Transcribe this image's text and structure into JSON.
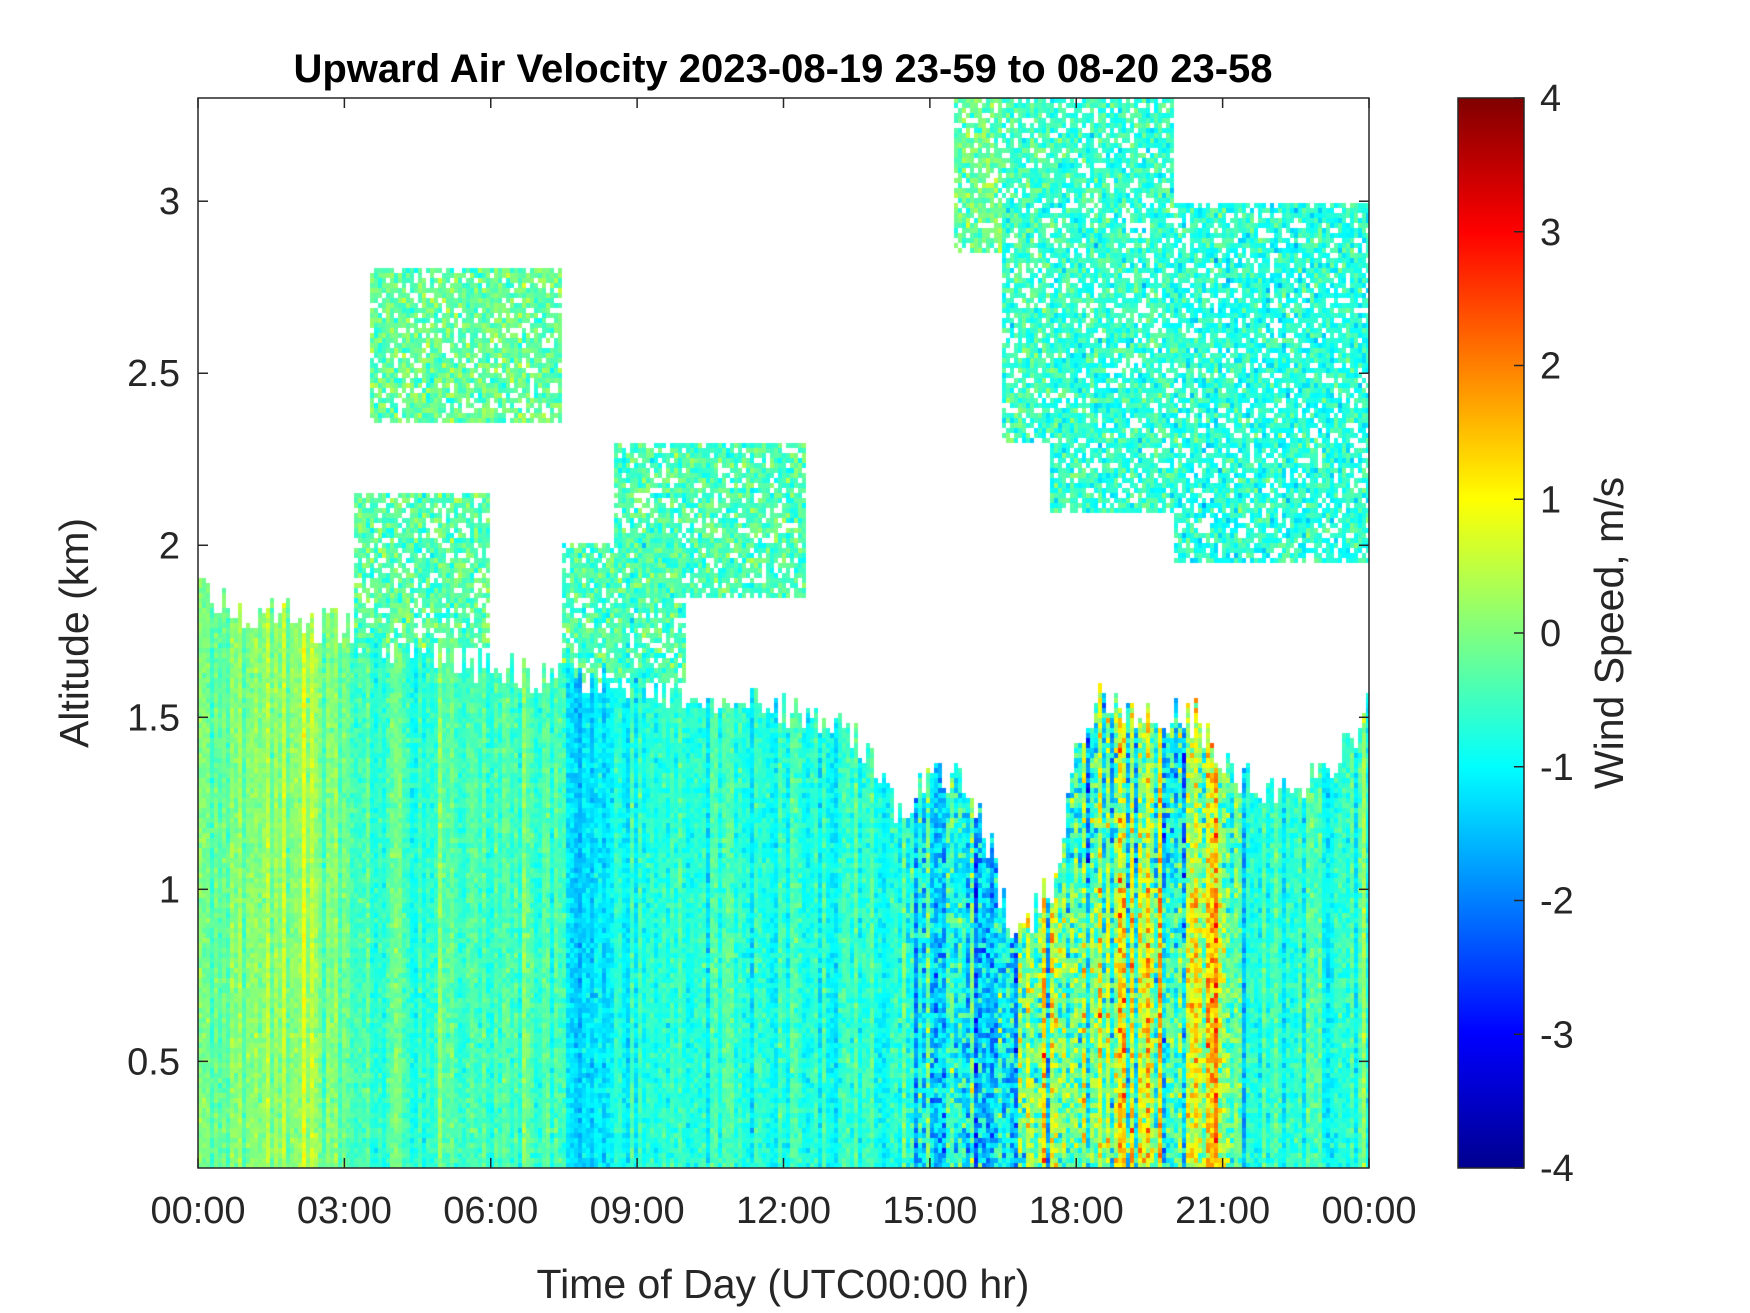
{
  "chart_data": {
    "type": "heatmap",
    "title": "Upward Air Velocity 2023-08-19 23-59 to 08-20 23-58",
    "xlabel": "Time of Day (UTC00:00 hr)",
    "ylabel": "Altitude (km)",
    "xlim_hours": [
      0,
      24
    ],
    "ylim": [
      0.19,
      3.3
    ],
    "x_ticks": [
      {
        "value": 0,
        "label": "00:00"
      },
      {
        "value": 3,
        "label": "03:00"
      },
      {
        "value": 6,
        "label": "06:00"
      },
      {
        "value": 9,
        "label": "09:00"
      },
      {
        "value": 12,
        "label": "12:00"
      },
      {
        "value": 15,
        "label": "15:00"
      },
      {
        "value": 18,
        "label": "18:00"
      },
      {
        "value": 21,
        "label": "21:00"
      },
      {
        "value": 24,
        "label": "00:00"
      }
    ],
    "y_ticks": [
      {
        "value": 0.5,
        "label": "0.5"
      },
      {
        "value": 1,
        "label": "1"
      },
      {
        "value": 1.5,
        "label": "1.5"
      },
      {
        "value": 2,
        "label": "2"
      },
      {
        "value": 2.5,
        "label": "2.5"
      },
      {
        "value": 3,
        "label": "3"
      }
    ],
    "colorbar": {
      "label": "Wind Speed, m/s",
      "colormap": "jet",
      "clim": [
        -4,
        4
      ],
      "ticks": [
        {
          "value": 4,
          "label": "4"
        },
        {
          "value": 3,
          "label": "3"
        },
        {
          "value": 2,
          "label": "2"
        },
        {
          "value": 1,
          "label": "1"
        },
        {
          "value": 0,
          "label": "0"
        },
        {
          "value": -1,
          "label": "-1"
        },
        {
          "value": -2,
          "label": "-2"
        },
        {
          "value": -3,
          "label": "-3"
        },
        {
          "value": -4,
          "label": "-4"
        }
      ]
    },
    "boundary_layer_top_km": [
      [
        0,
        1.88
      ],
      [
        1,
        1.8
      ],
      [
        2,
        1.78
      ],
      [
        3,
        1.75
      ],
      [
        4,
        1.72
      ],
      [
        5,
        1.68
      ],
      [
        6,
        1.65
      ],
      [
        7,
        1.62
      ],
      [
        8,
        1.62
      ],
      [
        9,
        1.6
      ],
      [
        10,
        1.58
      ],
      [
        11,
        1.55
      ],
      [
        12,
        1.52
      ],
      [
        13,
        1.5
      ],
      [
        13.7,
        1.42
      ],
      [
        14.3,
        1.22
      ],
      [
        15,
        1.32
      ],
      [
        15.8,
        1.3
      ],
      [
        16.3,
        1.1
      ],
      [
        16.7,
        0.82
      ],
      [
        17.2,
        0.95
      ],
      [
        17.7,
        1.05
      ],
      [
        18.0,
        1.45
      ],
      [
        18.5,
        1.55
      ],
      [
        19.5,
        1.5
      ],
      [
        20.5,
        1.5
      ],
      [
        21.2,
        1.32
      ],
      [
        22,
        1.28
      ],
      [
        23,
        1.32
      ],
      [
        24,
        1.52
      ]
    ],
    "elevated_layers": [
      {
        "t": [
          3.5,
          7.5
        ],
        "alt": [
          2.35,
          2.8
        ],
        "mean": -0.2
      },
      {
        "t": [
          3.2,
          6.0
        ],
        "alt": [
          1.7,
          2.15
        ],
        "mean": -0.3
      },
      {
        "t": [
          8.5,
          12.5
        ],
        "alt": [
          1.85,
          2.3
        ],
        "mean": -0.4
      },
      {
        "t": [
          7.5,
          10.0
        ],
        "alt": [
          1.6,
          2.0
        ],
        "mean": -0.4
      },
      {
        "t": [
          15.5,
          16.5
        ],
        "alt": [
          2.85,
          3.3
        ],
        "mean": -0.2
      },
      {
        "t": [
          16.5,
          17.5
        ],
        "alt": [
          2.3,
          3.3
        ],
        "mean": -0.5
      },
      {
        "t": [
          17.5,
          20.0
        ],
        "alt": [
          2.1,
          3.3
        ],
        "mean": -0.6
      },
      {
        "t": [
          20.0,
          24.0
        ],
        "alt": [
          1.95,
          3.0
        ],
        "mean": -0.7
      }
    ],
    "mean_velocity_by_time": [
      [
        0,
        -0.2
      ],
      [
        2.3,
        0.3
      ],
      [
        2.8,
        -0.3
      ],
      [
        7.5,
        -0.5
      ],
      [
        7.8,
        -1.1
      ],
      [
        8.8,
        -1.0
      ],
      [
        9.2,
        -0.6
      ],
      [
        14.3,
        -0.7
      ],
      [
        14.8,
        -1.2
      ],
      [
        16.5,
        -0.9
      ],
      [
        17.0,
        -0.2
      ],
      [
        21.0,
        -0.3
      ],
      [
        21.5,
        -0.7
      ],
      [
        24,
        -0.6
      ]
    ],
    "variability_by_time": [
      [
        0,
        0.35
      ],
      [
        14.3,
        0.45
      ],
      [
        14.8,
        0.9
      ],
      [
        17,
        1.3
      ],
      [
        21,
        1.2
      ],
      [
        21.5,
        0.5
      ],
      [
        24,
        0.5
      ]
    ]
  }
}
